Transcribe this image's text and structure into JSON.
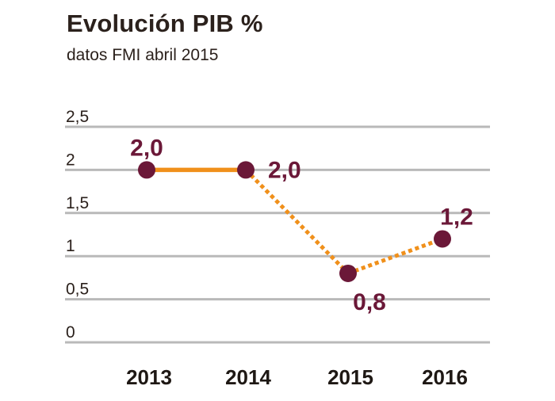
{
  "header": {
    "title": "Evolución PIB %",
    "subtitle": "datos FMI abril 2015"
  },
  "colors": {
    "line": "#f0901b",
    "point": "#6b1838",
    "grid": "#b9b9b9",
    "text": "#2b211c"
  },
  "chart_data": {
    "type": "line",
    "title": "Evolución PIB %",
    "subtitle": "datos FMI abril 2015",
    "x": [
      "2013",
      "2014",
      "2015",
      "2016"
    ],
    "series": [
      {
        "values": [
          2.0,
          2.0,
          0.8,
          1.2
        ],
        "value_labels": [
          "2,0",
          "2,0",
          "0,8",
          "1,2"
        ],
        "line_styles": [
          "solid",
          "dotted",
          "dotted"
        ]
      }
    ],
    "ylim": [
      0,
      2.5
    ],
    "yticks": [
      {
        "value": 0,
        "label": "0"
      },
      {
        "value": 0.5,
        "label": "0,5"
      },
      {
        "value": 1,
        "label": "1"
      },
      {
        "value": 1.5,
        "label": "1,5"
      },
      {
        "value": 2,
        "label": "2"
      },
      {
        "value": 2.5,
        "label": "2,5"
      }
    ],
    "grid": true,
    "legend": "none"
  }
}
